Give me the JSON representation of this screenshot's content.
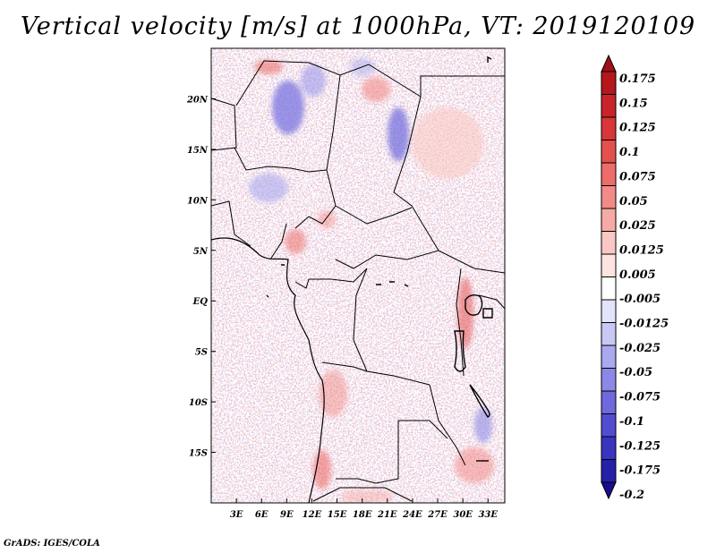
{
  "title": "Vertical velocity [m/s] at 1000hPa, VT: 2019120109",
  "credit": "GrADS: IGES/COLA",
  "map": {
    "lon_range": [
      0,
      35
    ],
    "lat_range": [
      -20,
      25
    ],
    "y_ticks": [
      {
        "lat": 20,
        "label": "20N"
      },
      {
        "lat": 15,
        "label": "15N"
      },
      {
        "lat": 10,
        "label": "10N"
      },
      {
        "lat": 5,
        "label": "5N"
      },
      {
        "lat": 0,
        "label": "EQ"
      },
      {
        "lat": -5,
        "label": "5S"
      },
      {
        "lat": -10,
        "label": "10S"
      },
      {
        "lat": -15,
        "label": "15S"
      }
    ],
    "x_ticks": [
      {
        "lon": 3,
        "label": "3E"
      },
      {
        "lon": 6,
        "label": "6E"
      },
      {
        "lon": 9,
        "label": "9E"
      },
      {
        "lon": 12,
        "label": "12E"
      },
      {
        "lon": 15,
        "label": "15E"
      },
      {
        "lon": 18,
        "label": "18E"
      },
      {
        "lon": 21,
        "label": "21E"
      },
      {
        "lon": 24,
        "label": "24E"
      },
      {
        "lon": 27,
        "label": "27E"
      },
      {
        "lon": 30,
        "label": "30E"
      },
      {
        "lon": 33,
        "label": "33E"
      }
    ]
  },
  "colorbar": {
    "levels": [
      {
        "label": "0.175",
        "color": "#b4171c"
      },
      {
        "label": "0.15",
        "color": "#c8242a"
      },
      {
        "label": "0.125",
        "color": "#d9363a"
      },
      {
        "label": "0.1",
        "color": "#e4504e"
      },
      {
        "label": "0.075",
        "color": "#ec6d69"
      },
      {
        "label": "0.05",
        "color": "#f28b87"
      },
      {
        "label": "0.025",
        "color": "#f6aaa5"
      },
      {
        "label": "0.0125",
        "color": "#fac8c3"
      },
      {
        "label": "0.005",
        "color": "#fde4e1"
      },
      {
        "label": "-0.005",
        "color": "#ffffff"
      },
      {
        "label": "-0.0125",
        "color": "#e3e3fb"
      },
      {
        "label": "-0.025",
        "color": "#c8c8f5"
      },
      {
        "label": "-0.05",
        "color": "#aaa8ee"
      },
      {
        "label": "-0.075",
        "color": "#8c88e6"
      },
      {
        "label": "-0.1",
        "color": "#6e69dc"
      },
      {
        "label": "-0.125",
        "color": "#524dd0"
      },
      {
        "label": "-0.175",
        "color": "#3a34c0"
      },
      {
        "label": "-0.2",
        "color": "#2620a8"
      }
    ],
    "top_color": "#a01018",
    "bottom_color": "#180e8c"
  }
}
